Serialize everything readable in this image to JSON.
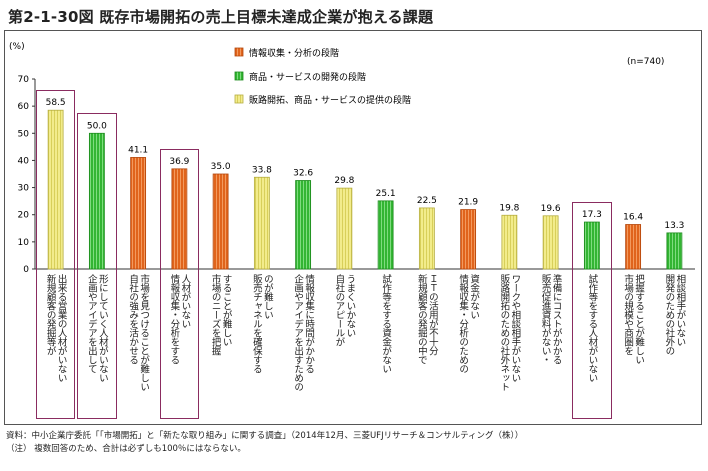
{
  "title": "第2-1-30図 既存市場開拓の売上目標未達成企業が抱える課題",
  "footer": {
    "source": "資料：中小企業庁委託「「市場開拓」と「新たな取り組み」に関する調査」（2014年12月、三菱UFJリサーチ＆コンサルティング（株））",
    "note": "（注） 複数回答のため、合計は必ずしも100％にはならない。"
  },
  "chart_data": {
    "type": "bar",
    "title": "第2-1-30図 既存市場開拓の売上目標未達成企業が抱える課題",
    "ylabel": "(%)",
    "n_label": "(n=740)",
    "ylim": [
      0,
      70
    ],
    "yticks": [
      0,
      10,
      20,
      30,
      40,
      50,
      60,
      70
    ],
    "grid": false,
    "legend_position": "top-right",
    "legend": [
      {
        "name": "情報収集・分析の段階",
        "color": "#e0641c"
      },
      {
        "name": "商品・サービスの開発の段階",
        "color": "#4cc04c"
      },
      {
        "name": "販路開拓、商品・サービスの提供の段階",
        "color": "#f2ec8c"
      }
    ],
    "categories": [
      "出来る営業の人材がいない\n新規顧客の発掘等が",
      "形にしていく人材がいない\n企画やアイデアを出して",
      "市場を見つけることが難しい\n自社の強みを活かせる",
      "人材がいない\n情報収集・分析をする",
      "することが難しい\n市場のニーズを把握",
      "のが難しい\n販売チャネルを確保する",
      "情報収集に時間がかかる\n企画やアイデアを出すための",
      "うまくいかない\n自社のアピールが",
      "試作等をする資金がない",
      "ＩＴの活用が不十分\n新規顧客の発掘の中で",
      "資金がない\n情報収集・分析のための",
      "ワークや相談相手がいない\n販路開拓のための社外ネット",
      "準備にコストがかかる\n販売促進資料がない・",
      "試作等をする人材がいない",
      "把握することが難しい\n市場の規模や商圏を",
      "相談相手がいない\n開発のための社外の"
    ],
    "values": [
      58.5,
      50.0,
      41.1,
      36.9,
      35.0,
      33.8,
      32.6,
      29.8,
      25.1,
      22.5,
      21.9,
      19.8,
      19.6,
      17.3,
      16.4,
      13.3
    ],
    "value_labels": [
      "58.5",
      "50.0",
      "41.1",
      "36.9",
      "35.0",
      "33.8",
      "32.6",
      "29.8",
      "25.1",
      "22.5",
      "21.9",
      "19.8",
      "19.6",
      "17.3",
      "16.4",
      "13.3"
    ],
    "stage": [
      2,
      1,
      0,
      0,
      0,
      2,
      1,
      2,
      1,
      2,
      0,
      2,
      2,
      1,
      0,
      1
    ],
    "highlighted": [
      0,
      1,
      3,
      13
    ]
  }
}
